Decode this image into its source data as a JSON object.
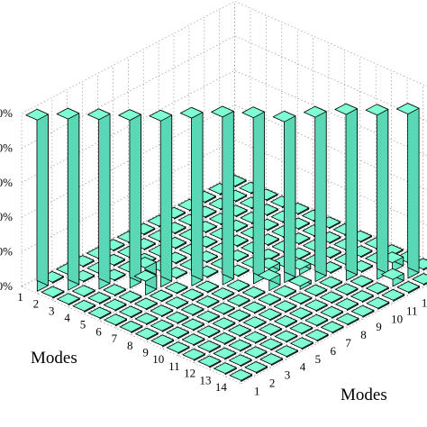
{
  "chart_data": {
    "type": "bar3d",
    "xlabel": "Modes",
    "ylabel": "Modes",
    "zlim": [
      0,
      1
    ],
    "z_unit": "%",
    "z_ticks": [
      0,
      20,
      40,
      60,
      80,
      100
    ],
    "z_tick_labels": [
      "0%",
      "20%",
      "40%",
      "60%",
      "80%",
      "100%"
    ],
    "x_categories": [
      "1",
      "2",
      "3",
      "4",
      "5",
      "6",
      "7",
      "8",
      "9",
      "10",
      "11",
      "12",
      "13",
      "14"
    ],
    "y_categories": [
      "1",
      "2",
      "3",
      "4",
      "5",
      "6",
      "7",
      "8",
      "9",
      "10",
      "11",
      "12",
      "13",
      "14"
    ],
    "grid": true,
    "bar_color": "#7fffd4",
    "matrix": [
      [
        0.99,
        0,
        0,
        0,
        0,
        0,
        0,
        0,
        0,
        0,
        0,
        0,
        0,
        0
      ],
      [
        0,
        0.99,
        0,
        0,
        0,
        0,
        0,
        0,
        0,
        0,
        0,
        0,
        0,
        0
      ],
      [
        0,
        0,
        0.98,
        0,
        0,
        0,
        0,
        0,
        0,
        0,
        0,
        0,
        0,
        0
      ],
      [
        0,
        0,
        0,
        0.97,
        0.07,
        0,
        0,
        0,
        0,
        0,
        0,
        0,
        0,
        0
      ],
      [
        0,
        0,
        0,
        0.08,
        0.96,
        0,
        0,
        0,
        0,
        0,
        0,
        0,
        0,
        0
      ],
      [
        0,
        0,
        0,
        0,
        0,
        0.97,
        0,
        0,
        0,
        0,
        0,
        0,
        0,
        0
      ],
      [
        0,
        0,
        0,
        0,
        0,
        0,
        0.97,
        0,
        0,
        0,
        0,
        0,
        0,
        0
      ],
      [
        0,
        0,
        0,
        0,
        0,
        0,
        0,
        0.96,
        0.04,
        0,
        0,
        0,
        0,
        0
      ],
      [
        0,
        0,
        0,
        0,
        0,
        0,
        0,
        0.06,
        0.93,
        0.03,
        0,
        0,
        0,
        0
      ],
      [
        0,
        0,
        0,
        0,
        0,
        0,
        0,
        0,
        0.02,
        0.95,
        0,
        0,
        0,
        0
      ],
      [
        0,
        0,
        0,
        0,
        0,
        0,
        0,
        0,
        0,
        0,
        0.96,
        0,
        0,
        0
      ],
      [
        0,
        0,
        0,
        0,
        0,
        0,
        0,
        0,
        0,
        0,
        0,
        0.95,
        0.05,
        0
      ],
      [
        0,
        0,
        0,
        0,
        0,
        0,
        0,
        0,
        0,
        0,
        0,
        0.04,
        0.95,
        0
      ],
      [
        0,
        0,
        0,
        0,
        0,
        0,
        0,
        0,
        0,
        0,
        0,
        0,
        0,
        0.97
      ]
    ]
  }
}
